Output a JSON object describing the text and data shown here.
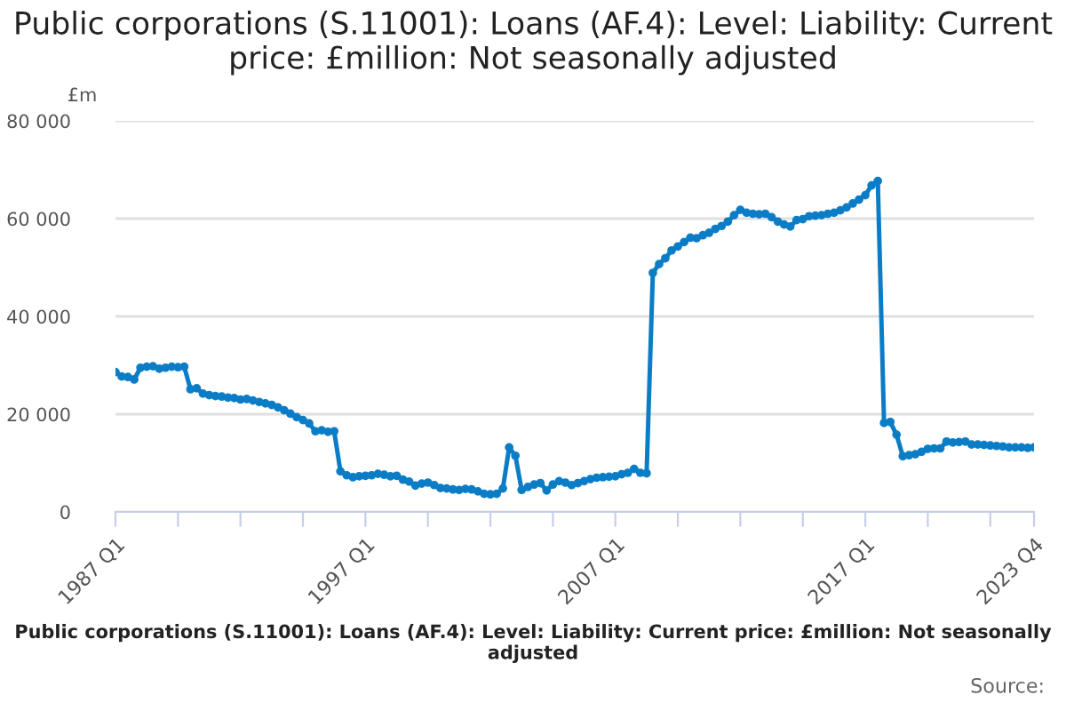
{
  "chart_data": {
    "type": "line",
    "title": "Public corporations (S.11001): Loans (AF.4): Level: Liability: Current price: £million: Not seasonally adjusted",
    "ylabel": "£m",
    "categories": [
      "1987 Q1",
      null,
      null,
      null,
      null,
      null,
      null,
      null,
      null,
      null,
      null,
      null,
      null,
      null,
      null,
      null,
      null,
      null,
      null,
      null,
      null,
      null,
      null,
      null,
      null,
      null,
      null,
      null,
      null,
      null,
      null,
      null,
      null,
      null,
      null,
      null,
      null,
      null,
      null,
      null,
      "1997 Q1",
      null,
      null,
      null,
      null,
      null,
      null,
      null,
      null,
      null,
      null,
      null,
      null,
      null,
      null,
      null,
      null,
      null,
      null,
      null,
      null,
      null,
      null,
      null,
      null,
      null,
      null,
      null,
      null,
      null,
      null,
      null,
      null,
      null,
      null,
      null,
      null,
      null,
      null,
      null,
      "2007 Q1",
      null,
      null,
      null,
      null,
      null,
      null,
      null,
      null,
      null,
      null,
      null,
      null,
      null,
      null,
      null,
      null,
      null,
      null,
      null,
      null,
      null,
      null,
      null,
      null,
      null,
      null,
      null,
      null,
      null,
      null,
      null,
      null,
      null,
      null,
      null,
      null,
      null,
      null,
      null,
      "2017 Q1",
      null,
      null,
      null,
      null,
      null,
      null,
      null,
      null,
      null,
      null,
      null,
      null,
      null,
      null,
      null,
      null,
      null,
      null,
      null,
      null,
      null,
      null,
      null,
      null,
      null,
      null,
      "2023 Q4"
    ],
    "series": [
      {
        "color": "#0b7dc6",
        "values": [
          28600,
          27700,
          27600,
          27100,
          29500,
          29700,
          29800,
          29300,
          29500,
          29700,
          29600,
          29700,
          25100,
          25300,
          24200,
          23900,
          23700,
          23600,
          23400,
          23300,
          23000,
          23100,
          22800,
          22500,
          22200,
          21900,
          21400,
          20800,
          20100,
          19400,
          18800,
          18100,
          16500,
          16700,
          16400,
          16500,
          8300,
          7500,
          7100,
          7300,
          7400,
          7500,
          7800,
          7600,
          7300,
          7400,
          6600,
          6200,
          5400,
          5800,
          6000,
          5500,
          4900,
          4800,
          4600,
          4500,
          4700,
          4600,
          4200,
          3700,
          3600,
          3700,
          4800,
          13200,
          11500,
          4500,
          5100,
          5600,
          5900,
          4400,
          5600,
          6300,
          6000,
          5500,
          5900,
          6300,
          6700,
          7000,
          7100,
          7200,
          7300,
          7700,
          8000,
          8800,
          8000,
          7900,
          48900,
          50700,
          51900,
          53500,
          54300,
          55200,
          56100,
          56000,
          56600,
          57100,
          57900,
          58500,
          59400,
          60700,
          61800,
          61200,
          61000,
          60900,
          61000,
          60300,
          59400,
          58800,
          58400,
          59700,
          59900,
          60500,
          60600,
          60700,
          61000,
          61200,
          61700,
          62300,
          63100,
          63900,
          64800,
          66800,
          67700,
          18200,
          18400,
          15800,
          11400,
          11600,
          11800,
          12300,
          12900,
          13000,
          13000,
          14400,
          14200,
          14300,
          14400,
          13800,
          13800,
          13700,
          13600,
          13500,
          13400,
          13200,
          13200,
          13200,
          13100,
          13200
        ]
      }
    ],
    "ylim": [
      0,
      80000
    ],
    "yticks": [
      0,
      {
        "value": 20000,
        "label": "20 000"
      },
      {
        "value": 40000,
        "label": "40 000"
      },
      {
        "value": 60000,
        "label": "60 000"
      },
      {
        "value": 80000,
        "label": "80 000"
      }
    ],
    "grid": "y",
    "marker": "circle",
    "line_style": "solid",
    "annotations": [
      "Public corporations (S.11001): Loans (AF.4): Level: Liability: Current price: £million: Not seasonally adjusted",
      "Source:"
    ]
  }
}
